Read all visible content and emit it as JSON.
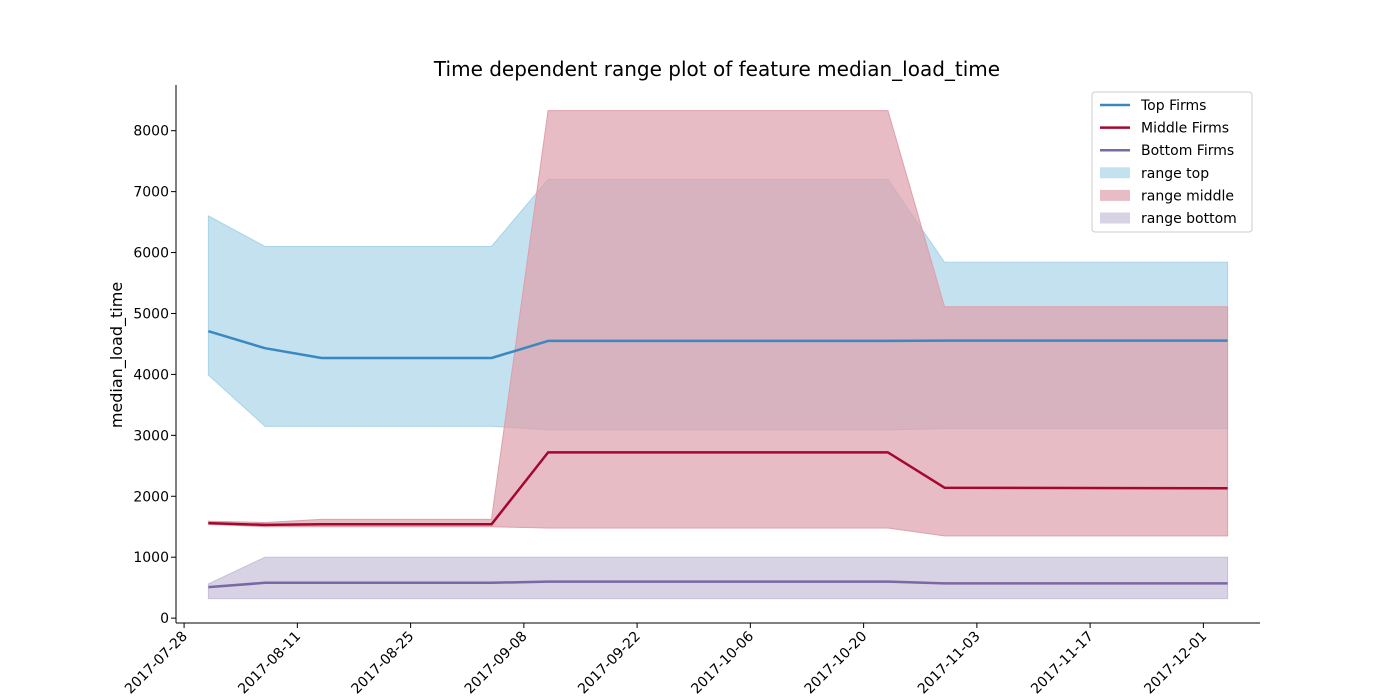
{
  "chart_data": {
    "type": "area",
    "title": "Time dependent range plot of feature median_load_time",
    "xlabel": "",
    "ylabel": "median_load_time",
    "x_dates": [
      "2017-07-31",
      "2017-08-07",
      "2017-08-14",
      "2017-09-04",
      "2017-09-11",
      "2017-10-23",
      "2017-10-30",
      "2017-12-04"
    ],
    "xlim": [
      "2017-07-27",
      "2017-12-08"
    ],
    "ylim": [
      -80,
      8750
    ],
    "x_ticks": [
      "2017-07-28",
      "2017-08-11",
      "2017-08-25",
      "2017-09-08",
      "2017-09-22",
      "2017-10-06",
      "2017-10-20",
      "2017-11-03",
      "2017-11-17",
      "2017-12-01"
    ],
    "y_ticks": [
      "0",
      "1000",
      "2000",
      "3000",
      "4000",
      "5000",
      "6000",
      "7000",
      "8000"
    ],
    "series": [
      {
        "name": "Top Firms",
        "color": "#3a88c0",
        "values": [
          4710,
          4430,
          4270,
          4270,
          4550,
          4550,
          4555,
          4555
        ]
      },
      {
        "name": "Middle Firms",
        "color": "#a4082e",
        "values": [
          1560,
          1530,
          1540,
          1540,
          2720,
          2720,
          2140,
          2130
        ]
      },
      {
        "name": "Bottom Firms",
        "color": "#7a68a4",
        "values": [
          510,
          580,
          580,
          580,
          600,
          600,
          570,
          570
        ]
      }
    ],
    "ranges": [
      {
        "name": "range top",
        "color": "#a9d4e8",
        "lower": [
          3990,
          3150,
          3150,
          3150,
          3090,
          3090,
          3110,
          3110
        ],
        "upper": [
          6600,
          6100,
          6100,
          6100,
          7200,
          7200,
          5840,
          5840
        ]
      },
      {
        "name": "range middle",
        "color": "#de9fab",
        "lower": [
          1540,
          1500,
          1500,
          1500,
          1480,
          1480,
          1350,
          1350
        ],
        "upper": [
          1590,
          1570,
          1620,
          1620,
          8330,
          8330,
          5110,
          5110
        ]
      },
      {
        "name": "range bottom",
        "color": "#c8bfda",
        "lower": [
          320,
          320,
          320,
          320,
          320,
          320,
          320,
          320
        ],
        "upper": [
          560,
          1000,
          1000,
          1000,
          1000,
          1000,
          1000,
          1000
        ]
      }
    ],
    "legend_position": "top-right",
    "grid": false
  }
}
